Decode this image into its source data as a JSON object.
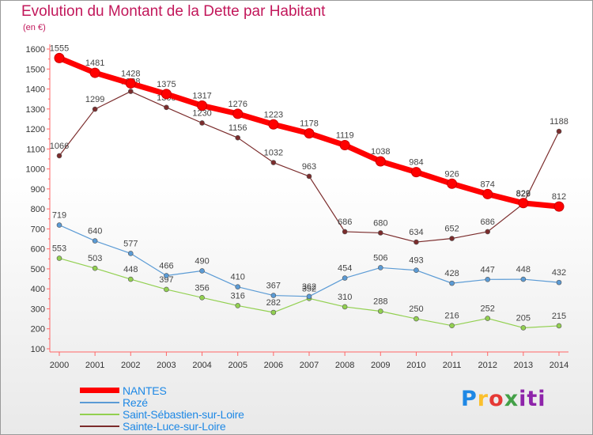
{
  "chart_data": {
    "type": "line",
    "title": "Evolution du Montant de la Dette par Habitant",
    "subtitle": "(en €)",
    "x": [
      "2000",
      "2001",
      "2002",
      "2003",
      "2004",
      "2005",
      "2006",
      "2007",
      "2008",
      "2009",
      "2010",
      "2011",
      "2012",
      "2013",
      "2014"
    ],
    "ylim": [
      100,
      1600
    ],
    "yticks": [
      100,
      200,
      300,
      400,
      500,
      600,
      700,
      800,
      900,
      1000,
      1100,
      1200,
      1300,
      1400,
      1500,
      1600
    ],
    "grid": false,
    "legend_position": "bottom-left",
    "series": [
      {
        "name": "NANTES",
        "color": "#ff0000",
        "values": [
          1555,
          1481,
          1428,
          1375,
          1317,
          1276,
          1223,
          1178,
          1119,
          1038,
          984,
          926,
          874,
          829,
          812
        ]
      },
      {
        "name": "Rezé",
        "color": "#5b9bd5",
        "values": [
          719,
          640,
          577,
          466,
          490,
          410,
          367,
          362,
          454,
          506,
          493,
          428,
          447,
          448,
          432
        ]
      },
      {
        "name": "Saint-Sébastien-sur-Loire",
        "color": "#92d050",
        "values": [
          553,
          503,
          448,
          397,
          356,
          316,
          282,
          352,
          310,
          288,
          250,
          216,
          252,
          205,
          215
        ]
      },
      {
        "name": "Sainte-Luce-sur-Loire",
        "color": "#7b2c2c",
        "values": [
          1066,
          1299,
          1388,
          1308,
          1230,
          1156,
          1032,
          963,
          686,
          680,
          634,
          652,
          686,
          826,
          1188
        ]
      }
    ]
  },
  "logo": {
    "p1": "P",
    "p2": "r",
    "p3": "o",
    "p4": "x",
    "p5": "iti"
  }
}
